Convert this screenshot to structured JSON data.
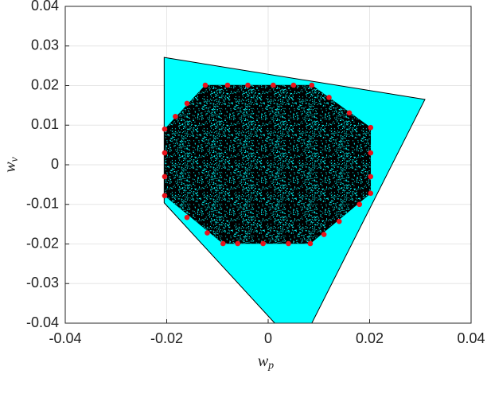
{
  "chart_data": {
    "type": "region-scatter",
    "xlabel": {
      "base": "w",
      "sub": "p"
    },
    "ylabel": {
      "base": "w",
      "sub": "v"
    },
    "xlim": [
      -0.04,
      0.04
    ],
    "ylim": [
      -0.04,
      0.04
    ],
    "xticks": [
      -0.04,
      -0.02,
      0,
      0.02,
      0.04
    ],
    "yticks": [
      -0.04,
      -0.03,
      -0.02,
      -0.01,
      0,
      0.01,
      0.02,
      0.03,
      0.04
    ],
    "grid": true,
    "regions": [
      {
        "color": "#00ffff",
        "x": [
          -0.0205,
          0.0309,
          0.0086,
          0.0013,
          -0.0205
        ],
        "y": [
          0.0271,
          0.0165,
          -0.04,
          -0.04,
          -0.0096
        ]
      },
      {
        "color": "#000000",
        "x": [
          -0.0204,
          -0.0124,
          0.0086,
          0.0202,
          0.0202,
          0.0083,
          -0.0089,
          -0.0204
        ],
        "y": [
          0.009,
          0.0201,
          0.0201,
          0.0094,
          -0.0072,
          -0.0199,
          -0.0199,
          -0.0078
        ]
      }
    ],
    "series": [
      {
        "color": "#e8141c",
        "x": [
          -0.0204,
          -0.0183,
          -0.016,
          -0.0124,
          -0.008,
          -0.004,
          0.001,
          0.005,
          0.0086,
          0.012,
          0.016,
          0.0202,
          0.0202,
          0.0202,
          0.0202,
          0.018,
          0.014,
          0.011,
          0.0083,
          0.004,
          -0.001,
          -0.006,
          -0.0089,
          -0.012,
          -0.016,
          -0.0204,
          -0.0204,
          -0.0204
        ],
        "values": [
          0.009,
          0.0122,
          0.0155,
          0.0201,
          0.0201,
          0.0201,
          0.0201,
          0.0201,
          0.0201,
          0.017,
          0.0131,
          0.0094,
          0.003,
          -0.003,
          -0.0072,
          -0.01,
          -0.0143,
          -0.0176,
          -0.0199,
          -0.0199,
          -0.0199,
          -0.0199,
          -0.0199,
          -0.0172,
          -0.0133,
          -0.0078,
          -0.003,
          0.003
        ]
      }
    ]
  }
}
